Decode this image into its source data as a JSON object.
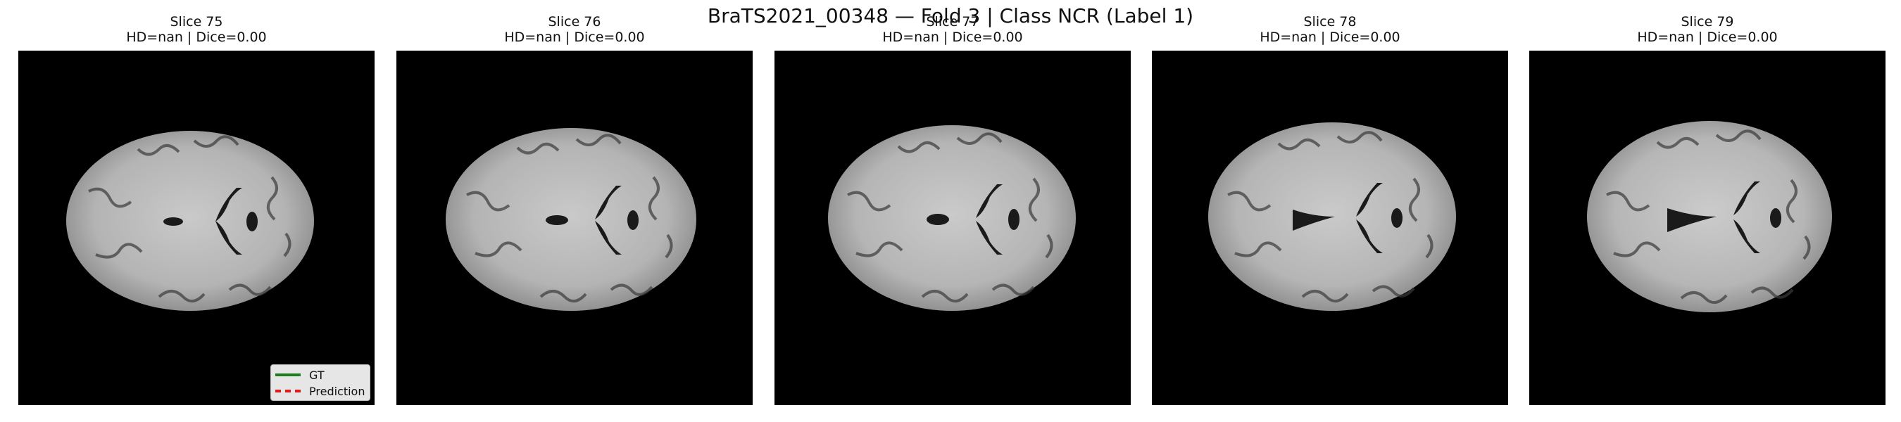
{
  "figure": {
    "suptitle": "BraTS2021_00348 — Fold 3 | Class NCR (Label 1)"
  },
  "panels": [
    {
      "slice": "Slice 75",
      "metrics": "HD=nan | Dice=0.00"
    },
    {
      "slice": "Slice 76",
      "metrics": "HD=nan | Dice=0.00"
    },
    {
      "slice": "Slice 77",
      "metrics": "HD=nan | Dice=0.00"
    },
    {
      "slice": "Slice 78",
      "metrics": "HD=nan | Dice=0.00"
    },
    {
      "slice": "Slice 79",
      "metrics": "HD=nan | Dice=0.00"
    }
  ],
  "legend": {
    "gt_label": "GT",
    "pred_label": "Prediction",
    "gt_color": "#1e7d1e",
    "pred_color": "#e01b1b"
  },
  "colors": {
    "background": "#000000",
    "tissue": "#bdbdbd"
  }
}
